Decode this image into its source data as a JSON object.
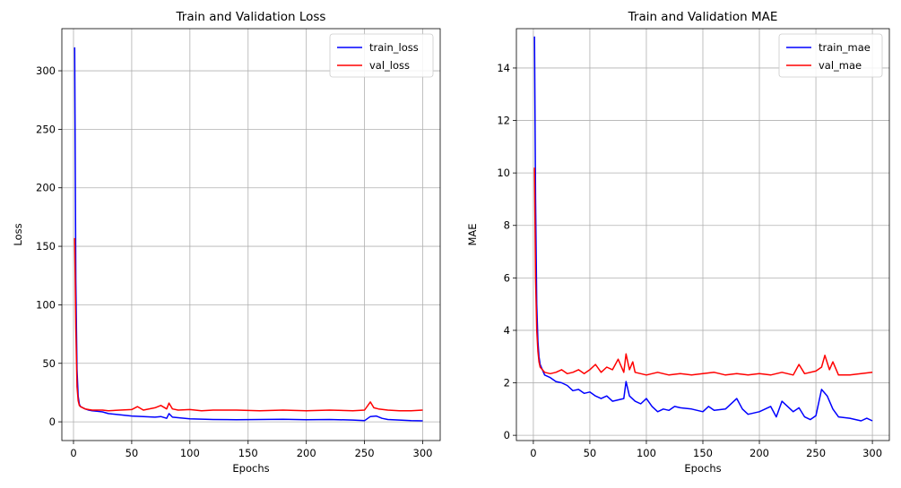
{
  "chart_data": [
    {
      "type": "line",
      "title": "Train and Validation Loss",
      "xlabel": "Epochs",
      "ylabel": "Loss",
      "xlim": [
        -10,
        315
      ],
      "ylim": [
        -16,
        336
      ],
      "xticks": [
        0,
        50,
        100,
        150,
        200,
        250,
        300
      ],
      "yticks": [
        0,
        50,
        100,
        150,
        200,
        250,
        300
      ],
      "grid": true,
      "legend_position": "top-right",
      "series": [
        {
          "name": "train_loss",
          "color": "#0000ff",
          "x": [
            1,
            2,
            3,
            4,
            5,
            6,
            8,
            10,
            13,
            16,
            20,
            25,
            30,
            40,
            50,
            60,
            70,
            75,
            80,
            82,
            85,
            90,
            100,
            120,
            140,
            160,
            180,
            200,
            220,
            240,
            250,
            255,
            260,
            265,
            270,
            280,
            290,
            300
          ],
          "y": [
            320,
            120,
            45,
            22,
            15,
            13,
            12,
            11,
            10,
            9.5,
            9,
            8.5,
            7,
            6,
            5,
            4.5,
            4,
            4.5,
            3,
            7,
            4,
            3.5,
            2.5,
            2,
            1.8,
            2,
            2.2,
            1.8,
            2,
            1.5,
            1,
            4.5,
            5,
            3,
            2,
            1.5,
            1,
            0.8
          ]
        },
        {
          "name": "val_loss",
          "color": "#ff0000",
          "x": [
            1,
            2,
            3,
            4,
            5,
            6,
            8,
            10,
            13,
            16,
            20,
            25,
            30,
            40,
            50,
            55,
            60,
            70,
            75,
            80,
            82,
            85,
            90,
            100,
            110,
            120,
            140,
            160,
            180,
            200,
            220,
            240,
            250,
            255,
            258,
            262,
            270,
            280,
            290,
            300
          ],
          "y": [
            157,
            80,
            30,
            18,
            14,
            13,
            12,
            11,
            10.5,
            10,
            10,
            10,
            9.5,
            10,
            10.5,
            13,
            10,
            12,
            14,
            11,
            16,
            11,
            10,
            10.5,
            9.5,
            10,
            10,
            9.5,
            10,
            9.5,
            10,
            9.5,
            10,
            17,
            12,
            11,
            10,
            9.5,
            9.5,
            10
          ]
        }
      ]
    },
    {
      "type": "line",
      "title": "Train and Validation MAE",
      "xlabel": "Epochs",
      "ylabel": "MAE",
      "xlim": [
        -15,
        315
      ],
      "ylim": [
        -0.2,
        15.5
      ],
      "xticks": [
        0,
        50,
        100,
        150,
        200,
        250,
        300
      ],
      "yticks": [
        0,
        2,
        4,
        6,
        8,
        10,
        12,
        14
      ],
      "grid": true,
      "legend_position": "top-right",
      "series": [
        {
          "name": "train_mae",
          "color": "#0000ff",
          "x": [
            1,
            2,
            3,
            4,
            5,
            6,
            8,
            10,
            15,
            20,
            25,
            30,
            35,
            40,
            45,
            50,
            55,
            60,
            65,
            70,
            75,
            80,
            82,
            85,
            90,
            95,
            100,
            105,
            110,
            115,
            120,
            125,
            130,
            140,
            150,
            155,
            160,
            170,
            180,
            185,
            190,
            200,
            210,
            215,
            220,
            230,
            235,
            240,
            245,
            250,
            255,
            260,
            265,
            270,
            280,
            290,
            295,
            300
          ],
          "y": [
            15.2,
            9,
            5,
            3.6,
            3,
            2.7,
            2.5,
            2.3,
            2.2,
            2.05,
            2,
            1.9,
            1.7,
            1.75,
            1.6,
            1.65,
            1.5,
            1.4,
            1.5,
            1.3,
            1.35,
            1.4,
            2.05,
            1.5,
            1.3,
            1.2,
            1.4,
            1.1,
            0.9,
            1,
            0.95,
            1.1,
            1.05,
            1,
            0.9,
            1.1,
            0.95,
            1.0,
            1.4,
            1.0,
            0.8,
            0.9,
            1.1,
            0.7,
            1.3,
            0.9,
            1.05,
            0.7,
            0.6,
            0.75,
            1.75,
            1.5,
            1.0,
            0.7,
            0.65,
            0.55,
            0.65,
            0.55
          ]
        },
        {
          "name": "val_mae",
          "color": "#ff0000",
          "x": [
            1,
            2,
            3,
            4,
            5,
            6,
            8,
            10,
            15,
            20,
            25,
            30,
            35,
            40,
            45,
            50,
            55,
            60,
            65,
            70,
            75,
            80,
            82,
            85,
            88,
            90,
            95,
            100,
            110,
            120,
            130,
            140,
            150,
            160,
            170,
            180,
            190,
            200,
            210,
            220,
            230,
            235,
            240,
            250,
            255,
            258,
            262,
            265,
            270,
            280,
            290,
            300
          ],
          "y": [
            10.2,
            6,
            4,
            3.2,
            2.8,
            2.6,
            2.5,
            2.4,
            2.35,
            2.4,
            2.5,
            2.35,
            2.4,
            2.5,
            2.35,
            2.5,
            2.7,
            2.4,
            2.6,
            2.5,
            2.9,
            2.4,
            3.1,
            2.5,
            2.8,
            2.4,
            2.35,
            2.3,
            2.4,
            2.3,
            2.35,
            2.3,
            2.35,
            2.4,
            2.3,
            2.35,
            2.3,
            2.35,
            2.3,
            2.4,
            2.3,
            2.7,
            2.35,
            2.45,
            2.6,
            3.05,
            2.5,
            2.8,
            2.3,
            2.3,
            2.35,
            2.4
          ]
        }
      ]
    }
  ]
}
